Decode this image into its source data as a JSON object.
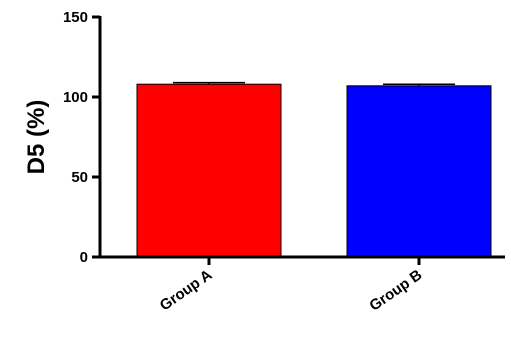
{
  "chart_data": {
    "type": "bar",
    "title": "",
    "xlabel": "",
    "ylabel": "D5 (%)",
    "categories": [
      "Group A",
      "Group B"
    ],
    "values": [
      108,
      107
    ],
    "errors": [
      1,
      1
    ],
    "colors": [
      "#ff0000",
      "#0000ff"
    ],
    "ylim": [
      0,
      150
    ],
    "yticks": [
      "0",
      "50",
      "100",
      "150"
    ],
    "grid": false,
    "legend": "none"
  }
}
